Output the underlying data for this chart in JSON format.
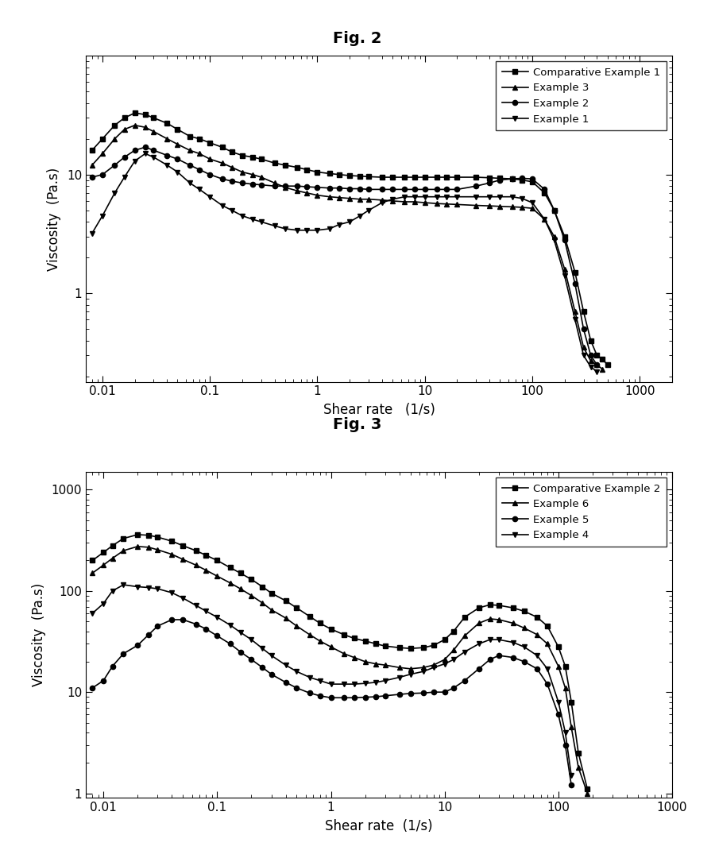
{
  "fig2_title": "Fig. 2",
  "fig3_title": "Fig. 3",
  "fig2_xlabel": "Shear rate   (1/s)",
  "fig2_ylabel": "Viscosity  (Pa.s)",
  "fig3_xlabel": "Shear rate  (1/s)",
  "fig3_ylabel": "Viscosity  (Pa.s)",
  "fig2_xlim": [
    0.007,
    2000
  ],
  "fig2_ylim": [
    0.18,
    100
  ],
  "fig3_xlim": [
    0.007,
    1000
  ],
  "fig3_ylim": [
    0.9,
    1500
  ],
  "fig2_legend": [
    "Comparative Example 1",
    "Example 3",
    "Example 2",
    "Example 1"
  ],
  "fig3_legend": [
    "Comparative Example 2",
    "Example 6",
    "Example 5",
    "Example 4"
  ],
  "fig2_comp1_x": [
    0.008,
    0.01,
    0.013,
    0.016,
    0.02,
    0.025,
    0.03,
    0.04,
    0.05,
    0.065,
    0.08,
    0.1,
    0.13,
    0.16,
    0.2,
    0.25,
    0.3,
    0.4,
    0.5,
    0.65,
    0.8,
    1.0,
    1.3,
    1.6,
    2.0,
    2.5,
    3.0,
    4.0,
    5.0,
    6.5,
    8.0,
    10,
    13,
    16,
    20,
    30,
    40,
    50,
    65,
    80,
    100,
    130,
    160,
    200,
    250,
    300,
    350,
    400,
    450,
    500
  ],
  "fig2_comp1_y": [
    16,
    20,
    26,
    30,
    33,
    32,
    30,
    27,
    24,
    21,
    20,
    18.5,
    17,
    15.5,
    14.5,
    14,
    13.5,
    12.5,
    12,
    11.5,
    11,
    10.5,
    10.2,
    10,
    9.8,
    9.7,
    9.6,
    9.5,
    9.5,
    9.5,
    9.5,
    9.5,
    9.5,
    9.5,
    9.5,
    9.5,
    9.4,
    9.3,
    9.2,
    9.0,
    8.7,
    7.0,
    5.0,
    3.0,
    1.5,
    0.7,
    0.4,
    0.3,
    0.28,
    0.25
  ],
  "fig2_ex3_x": [
    0.008,
    0.01,
    0.013,
    0.016,
    0.02,
    0.025,
    0.03,
    0.04,
    0.05,
    0.065,
    0.08,
    0.1,
    0.13,
    0.16,
    0.2,
    0.25,
    0.3,
    0.4,
    0.5,
    0.65,
    0.8,
    1.0,
    1.3,
    1.6,
    2.0,
    2.5,
    3.0,
    4.0,
    5.0,
    6.5,
    8.0,
    10,
    13,
    16,
    20,
    30,
    40,
    50,
    65,
    80,
    100,
    130,
    160,
    200,
    250,
    300,
    350,
    400,
    450
  ],
  "fig2_ex3_y": [
    12,
    15,
    20,
    24,
    26,
    25,
    23,
    20,
    18,
    16,
    15,
    13.5,
    12.5,
    11.5,
    10.5,
    10,
    9.5,
    8.5,
    7.8,
    7.3,
    7.0,
    6.7,
    6.5,
    6.4,
    6.3,
    6.2,
    6.2,
    6.1,
    6.0,
    5.9,
    5.9,
    5.8,
    5.7,
    5.65,
    5.6,
    5.5,
    5.45,
    5.4,
    5.35,
    5.3,
    5.2,
    4.2,
    3.0,
    1.6,
    0.7,
    0.35,
    0.27,
    0.25,
    0.23
  ],
  "fig2_ex2_x": [
    0.008,
    0.01,
    0.013,
    0.016,
    0.02,
    0.025,
    0.03,
    0.04,
    0.05,
    0.065,
    0.08,
    0.1,
    0.13,
    0.16,
    0.2,
    0.25,
    0.3,
    0.4,
    0.5,
    0.65,
    0.8,
    1.0,
    1.3,
    1.6,
    2.0,
    2.5,
    3.0,
    4.0,
    5.0,
    6.5,
    8.0,
    10,
    13,
    16,
    20,
    30,
    40,
    50,
    65,
    80,
    100,
    130,
    160,
    200,
    250,
    300,
    350,
    400
  ],
  "fig2_ex2_y": [
    9.5,
    10,
    12,
    14,
    16,
    17,
    16,
    14.5,
    13.5,
    12,
    11,
    10,
    9.2,
    8.8,
    8.5,
    8.3,
    8.2,
    8.0,
    8.0,
    8.0,
    7.9,
    7.8,
    7.7,
    7.7,
    7.6,
    7.6,
    7.5,
    7.5,
    7.5,
    7.5,
    7.5,
    7.5,
    7.5,
    7.5,
    7.5,
    8.0,
    8.5,
    9.0,
    9.2,
    9.3,
    9.2,
    7.5,
    5.0,
    2.8,
    1.2,
    0.5,
    0.3,
    0.25
  ],
  "fig2_ex1_x": [
    0.008,
    0.01,
    0.013,
    0.016,
    0.02,
    0.025,
    0.03,
    0.04,
    0.05,
    0.065,
    0.08,
    0.1,
    0.13,
    0.16,
    0.2,
    0.25,
    0.3,
    0.4,
    0.5,
    0.65,
    0.8,
    1.0,
    1.3,
    1.6,
    2.0,
    2.5,
    3.0,
    4.0,
    5.0,
    6.5,
    8.0,
    10,
    13,
    16,
    20,
    30,
    40,
    50,
    65,
    80,
    100,
    130,
    160,
    200,
    250,
    300,
    350,
    400
  ],
  "fig2_ex1_y": [
    3.2,
    4.5,
    7.0,
    9.5,
    13,
    15,
    14,
    12,
    10.5,
    8.5,
    7.5,
    6.5,
    5.5,
    5.0,
    4.5,
    4.2,
    4.0,
    3.7,
    3.5,
    3.4,
    3.4,
    3.4,
    3.5,
    3.8,
    4.0,
    4.5,
    5.0,
    5.8,
    6.2,
    6.5,
    6.5,
    6.5,
    6.5,
    6.5,
    6.5,
    6.5,
    6.5,
    6.5,
    6.5,
    6.3,
    5.8,
    4.2,
    2.8,
    1.4,
    0.6,
    0.3,
    0.24,
    0.22
  ],
  "fig3_comp2_x": [
    0.008,
    0.01,
    0.012,
    0.015,
    0.02,
    0.025,
    0.03,
    0.04,
    0.05,
    0.065,
    0.08,
    0.1,
    0.13,
    0.16,
    0.2,
    0.25,
    0.3,
    0.4,
    0.5,
    0.65,
    0.8,
    1.0,
    1.3,
    1.6,
    2.0,
    2.5,
    3.0,
    4.0,
    5.0,
    6.5,
    8.0,
    10,
    12,
    15,
    20,
    25,
    30,
    40,
    50,
    65,
    80,
    100,
    115,
    130,
    150,
    180
  ],
  "fig3_comp2_y": [
    200,
    240,
    280,
    330,
    360,
    355,
    340,
    310,
    280,
    250,
    225,
    200,
    170,
    150,
    130,
    110,
    95,
    80,
    68,
    56,
    48,
    42,
    37,
    34,
    32,
    30,
    28.5,
    27.5,
    27,
    27.5,
    29,
    33,
    40,
    55,
    68,
    73,
    72,
    68,
    63,
    55,
    45,
    28,
    18,
    8,
    2.5,
    1.1
  ],
  "fig3_ex6_x": [
    0.008,
    0.01,
    0.012,
    0.015,
    0.02,
    0.025,
    0.03,
    0.04,
    0.05,
    0.065,
    0.08,
    0.1,
    0.13,
    0.16,
    0.2,
    0.25,
    0.3,
    0.4,
    0.5,
    0.65,
    0.8,
    1.0,
    1.3,
    1.6,
    2.0,
    2.5,
    3.0,
    4.0,
    5.0,
    6.5,
    8.0,
    10,
    12,
    15,
    20,
    25,
    30,
    40,
    50,
    65,
    80,
    100,
    115,
    130,
    150,
    180
  ],
  "fig3_ex6_y": [
    150,
    180,
    210,
    250,
    275,
    270,
    255,
    230,
    205,
    180,
    160,
    140,
    120,
    105,
    90,
    76,
    65,
    54,
    45,
    37,
    32,
    28,
    24,
    22,
    20,
    19,
    18.5,
    17.5,
    17,
    17.5,
    18.5,
    21,
    26,
    36,
    48,
    53,
    52,
    48,
    43,
    37,
    30,
    18,
    11,
    4.5,
    1.8,
    1.0
  ],
  "fig3_ex5_x": [
    0.008,
    0.01,
    0.012,
    0.015,
    0.02,
    0.025,
    0.03,
    0.04,
    0.05,
    0.065,
    0.08,
    0.1,
    0.13,
    0.16,
    0.2,
    0.25,
    0.3,
    0.4,
    0.5,
    0.65,
    0.8,
    1.0,
    1.3,
    1.6,
    2.0,
    2.5,
    3.0,
    4.0,
    5.0,
    6.5,
    8.0,
    10,
    12,
    15,
    20,
    25,
    30,
    40,
    50,
    65,
    80,
    100,
    115,
    130
  ],
  "fig3_ex5_y": [
    11,
    13,
    18,
    24,
    29,
    37,
    45,
    52,
    52,
    47,
    42,
    36,
    30,
    25,
    21,
    17.5,
    15,
    12.5,
    11,
    9.8,
    9.2,
    8.8,
    8.8,
    8.8,
    8.9,
    9.0,
    9.2,
    9.5,
    9.7,
    9.8,
    10,
    10,
    11,
    13,
    17,
    21,
    23,
    22,
    20,
    17,
    12,
    6,
    3,
    1.2
  ],
  "fig3_ex4_x": [
    0.008,
    0.01,
    0.012,
    0.015,
    0.02,
    0.025,
    0.03,
    0.04,
    0.05,
    0.065,
    0.08,
    0.1,
    0.13,
    0.16,
    0.2,
    0.25,
    0.3,
    0.4,
    0.5,
    0.65,
    0.8,
    1.0,
    1.3,
    1.6,
    2.0,
    2.5,
    3.0,
    4.0,
    5.0,
    6.5,
    8.0,
    10,
    12,
    15,
    20,
    25,
    30,
    40,
    50,
    65,
    80,
    100,
    115,
    130
  ],
  "fig3_ex4_y": [
    60,
    75,
    100,
    115,
    110,
    108,
    105,
    96,
    85,
    72,
    63,
    55,
    46,
    39,
    33,
    27,
    23,
    18.5,
    16,
    14,
    13,
    12,
    12,
    12,
    12.2,
    12.5,
    13,
    14,
    15,
    16,
    17.5,
    19,
    21,
    25,
    30,
    33,
    33,
    31,
    28,
    23,
    17,
    8,
    4,
    1.5
  ]
}
